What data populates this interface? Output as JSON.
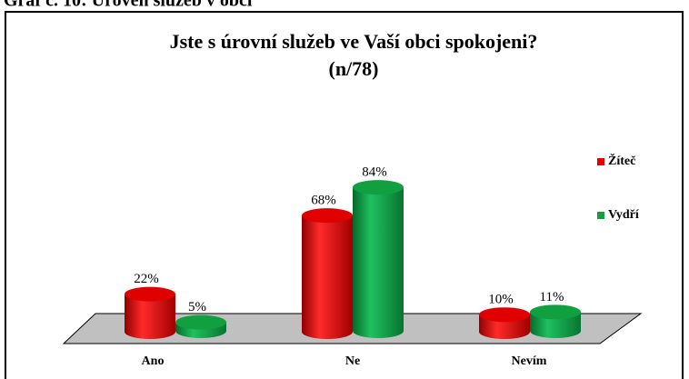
{
  "caption": "Graf č. 10: Úroveň služeb v obci",
  "chart_data": {
    "type": "bar3d",
    "title": "Jste s úrovní služeb ve Vaší obci spokojeni?",
    "subtitle": "(n/78)",
    "categories": [
      "Ano",
      "Ne",
      "Nevím"
    ],
    "series": [
      {
        "name": "Žíteč",
        "color": "#e00000",
        "values": [
          22,
          68,
          10
        ],
        "value_labels": [
          "22%",
          "68%",
          "10%"
        ]
      },
      {
        "name": "Vydří",
        "color": "#10a040",
        "values": [
          5,
          84,
          11
        ],
        "value_labels": [
          "5%",
          "84%",
          "11%"
        ]
      }
    ],
    "legend": "right"
  }
}
